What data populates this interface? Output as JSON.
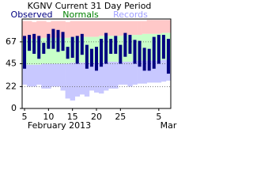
{
  "chart_data": {
    "type": "range-bar",
    "title": "KGNV Current 31 Day Period",
    "categories": [
      "5",
      null,
      null,
      null,
      null,
      "10",
      null,
      null,
      null,
      null,
      "15",
      null,
      null,
      null,
      null,
      "20",
      null,
      null,
      null,
      null,
      "25",
      null,
      null,
      null,
      null,
      null,
      null,
      null,
      "5",
      null,
      null
    ],
    "x_label": "February 2013",
    "x_label_end": "Mar",
    "series": [
      {
        "name": "Observed",
        "color": "#000080",
        "high": [
          73,
          74,
          75,
          73,
          66,
          75,
          80,
          79,
          77,
          62,
          72,
          73,
          75,
          64,
          60,
          62,
          70,
          76,
          70,
          73,
          64,
          76,
          74,
          69,
          68,
          61,
          60,
          72,
          74,
          74,
          70
        ],
        "low": [
          40,
          58,
          55,
          50,
          55,
          60,
          60,
          57,
          58,
          50,
          51,
          45,
          54,
          40,
          42,
          38,
          42,
          45,
          55,
          55,
          45,
          52,
          55,
          45,
          42,
          38,
          38,
          40,
          45,
          50,
          35
        ]
      },
      {
        "name": "Normals",
        "color": "#008000",
        "fill": "#c8ffc8",
        "high": [
          70,
          70,
          70,
          70,
          71,
          71,
          71,
          71,
          71,
          71,
          72,
          72,
          72,
          72,
          72,
          72,
          73,
          73,
          73,
          73,
          73,
          74,
          74,
          74,
          74,
          75,
          75,
          75,
          75,
          76,
          76
        ],
        "low": [
          44,
          44,
          44,
          44,
          45,
          45,
          45,
          45,
          45,
          45,
          46,
          46,
          46,
          46,
          46,
          46,
          46,
          47,
          47,
          47,
          47,
          47,
          47,
          48,
          48,
          48,
          48,
          48,
          48,
          49,
          49
        ]
      },
      {
        "name": "Records",
        "color": "#a0a0ff",
        "fill_high": "#ffc8c8",
        "fill_low": "#c8c8ff",
        "high": [
          88,
          88,
          87,
          88,
          88,
          87,
          88,
          88,
          88,
          87,
          88,
          88,
          88,
          88,
          88,
          88,
          88,
          88,
          88,
          88,
          88,
          88,
          88,
          88,
          88,
          88,
          89,
          89,
          89,
          89,
          89
        ],
        "low": [
          24,
          22,
          22,
          24,
          20,
          20,
          22,
          22,
          18,
          10,
          8,
          12,
          14,
          12,
          18,
          16,
          15,
          18,
          20,
          20,
          24,
          24,
          22,
          24,
          25,
          25,
          26,
          26,
          26,
          27,
          28
        ]
      }
    ],
    "ylim": [
      0,
      90
    ],
    "yticks": [
      0,
      22,
      45,
      67
    ],
    "grid": true
  }
}
